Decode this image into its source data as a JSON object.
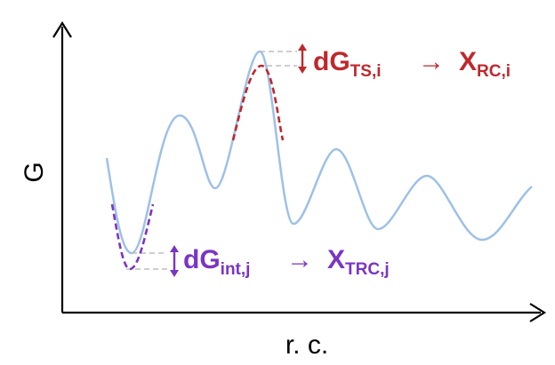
{
  "axes": {
    "y_label": "G",
    "x_label": "r. c."
  },
  "annotations": {
    "transition_state": {
      "main": "dG",
      "sub": "TS,i",
      "arrow": "→",
      "result_main": "X",
      "result_sub": "RC,i",
      "color": "#c0282d"
    },
    "intermediate": {
      "main": "dG",
      "sub": "int,j",
      "arrow": "→",
      "result_main": "X",
      "result_sub": "TRC,j",
      "color": "#7a35c4"
    }
  },
  "colors": {
    "curve": "#9ec0e8",
    "guides": "#bdbdbd",
    "axis": "#000000"
  }
}
